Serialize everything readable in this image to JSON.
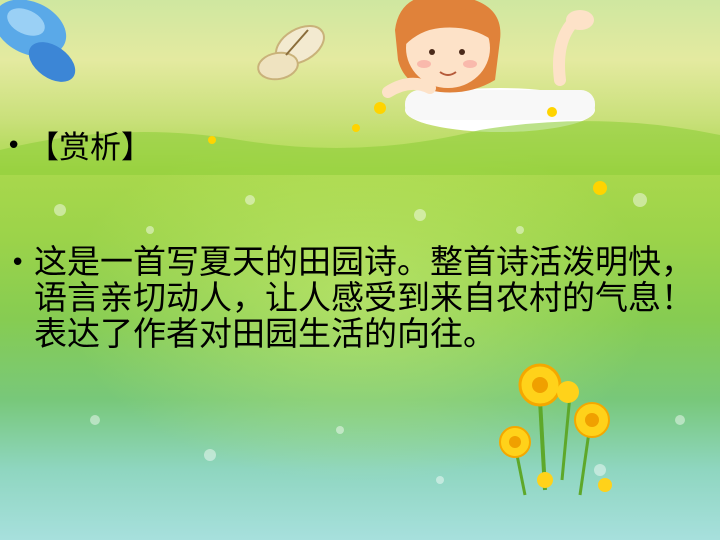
{
  "slide": {
    "heading_bullet": "•",
    "heading": "【赏析】",
    "body_bullet": "•",
    "body": "这是一首写夏天的田园诗。整首诗活泼明快，语言亲切动人，让人感受到来自农村的气息！表达了作者对田园生活的向往。"
  }
}
